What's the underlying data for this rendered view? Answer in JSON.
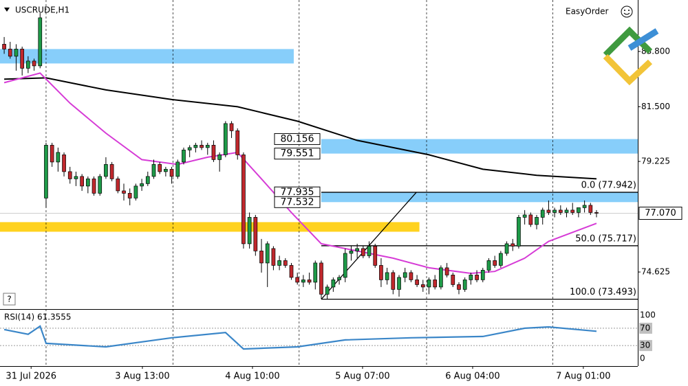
{
  "chart_data": {
    "type": "candlestick",
    "title": "USCRUDE,H1",
    "broker": "EasyOrder",
    "help": "?",
    "up_color": "#1e9a48",
    "down_color": "#c0282d",
    "candles": [
      [
        84.1,
        84.4,
        83.7,
        83.9
      ],
      [
        83.9,
        84.2,
        83.5,
        83.6
      ],
      [
        83.6,
        84.1,
        83.0,
        83.9
      ],
      [
        83.9,
        84.0,
        82.8,
        83.1
      ],
      [
        83.1,
        83.6,
        82.9,
        83.4
      ],
      [
        83.4,
        83.5,
        83.0,
        83.2
      ],
      [
        83.2,
        85.4,
        83.1,
        85.2
      ],
      [
        77.7,
        80.0,
        77.3,
        79.9
      ],
      [
        79.9,
        80.0,
        79.0,
        79.2
      ],
      [
        79.2,
        79.8,
        78.8,
        79.6
      ],
      [
        79.5,
        79.6,
        78.6,
        78.8
      ],
      [
        78.8,
        79.0,
        78.3,
        78.5
      ],
      [
        78.5,
        78.8,
        78.2,
        78.6
      ],
      [
        78.6,
        78.7,
        78.0,
        78.2
      ],
      [
        78.2,
        78.6,
        77.9,
        78.5
      ],
      [
        78.5,
        78.6,
        77.8,
        77.9
      ],
      [
        77.9,
        78.7,
        77.8,
        78.6
      ],
      [
        78.6,
        79.4,
        78.5,
        79.1
      ],
      [
        79.1,
        79.2,
        78.4,
        78.5
      ],
      [
        78.5,
        78.6,
        77.9,
        78.0
      ],
      [
        78.0,
        78.3,
        77.6,
        77.9
      ],
      [
        77.9,
        78.1,
        77.4,
        77.7
      ],
      [
        77.7,
        78.3,
        77.6,
        78.2
      ],
      [
        78.2,
        78.5,
        78.0,
        78.3
      ],
      [
        78.3,
        78.8,
        78.2,
        78.6
      ],
      [
        78.6,
        79.3,
        78.5,
        79.1
      ],
      [
        79.1,
        79.2,
        78.7,
        78.8
      ],
      [
        78.8,
        79.0,
        78.6,
        78.9
      ],
      [
        78.9,
        79.0,
        78.3,
        78.6
      ],
      [
        78.6,
        79.3,
        78.5,
        79.2
      ],
      [
        79.2,
        79.8,
        79.1,
        79.7
      ],
      [
        79.7,
        79.9,
        79.4,
        79.8
      ],
      [
        79.8,
        80.0,
        79.6,
        79.9
      ],
      [
        79.9,
        80.1,
        79.7,
        79.8
      ],
      [
        79.8,
        80.0,
        79.5,
        79.9
      ],
      [
        79.9,
        80.1,
        79.2,
        79.3
      ],
      [
        79.3,
        79.6,
        78.8,
        79.5
      ],
      [
        79.5,
        80.9,
        79.4,
        80.8
      ],
      [
        80.8,
        80.9,
        80.2,
        80.5
      ],
      [
        80.5,
        80.6,
        79.3,
        79.5
      ],
      [
        79.5,
        79.6,
        75.6,
        75.8
      ],
      [
        75.8,
        77.1,
        75.6,
        76.9
      ],
      [
        76.9,
        77.0,
        75.3,
        75.5
      ],
      [
        75.5,
        76.0,
        74.6,
        75.0
      ],
      [
        75.0,
        75.9,
        74.0,
        75.8
      ],
      [
        75.6,
        75.7,
        74.7,
        74.9
      ],
      [
        74.9,
        75.3,
        74.7,
        75.1
      ],
      [
        75.1,
        75.2,
        74.8,
        74.9
      ],
      [
        74.9,
        75.0,
        74.3,
        74.4
      ],
      [
        74.4,
        74.6,
        74.1,
        74.2
      ],
      [
        74.2,
        74.5,
        74.0,
        74.3
      ],
      [
        74.3,
        74.6,
        74.1,
        74.2
      ],
      [
        74.2,
        75.1,
        73.9,
        75.0
      ],
      [
        75.0,
        75.1,
        73.5,
        73.7
      ],
      [
        73.7,
        74.1,
        73.5,
        74.0
      ],
      [
        74.0,
        74.4,
        73.8,
        74.3
      ],
      [
        74.3,
        74.5,
        74.1,
        74.4
      ],
      [
        74.4,
        75.6,
        74.2,
        75.4
      ],
      [
        75.4,
        75.7,
        75.1,
        75.5
      ],
      [
        75.5,
        75.8,
        75.2,
        75.6
      ],
      [
        75.6,
        75.7,
        75.2,
        75.3
      ],
      [
        75.3,
        75.9,
        75.2,
        75.7
      ],
      [
        75.7,
        75.8,
        74.8,
        74.9
      ],
      [
        74.9,
        75.2,
        74.0,
        74.3
      ],
      [
        74.3,
        74.8,
        74.1,
        74.6
      ],
      [
        74.6,
        74.7,
        73.7,
        73.9
      ],
      [
        73.9,
        74.5,
        73.6,
        74.4
      ],
      [
        74.4,
        74.8,
        74.2,
        74.6
      ],
      [
        74.6,
        74.7,
        74.2,
        74.3
      ],
      [
        74.3,
        74.5,
        74.0,
        74.1
      ],
      [
        74.1,
        74.3,
        73.8,
        74.0
      ],
      [
        74.0,
        74.4,
        73.7,
        74.3
      ],
      [
        74.3,
        74.5,
        73.9,
        74.0
      ],
      [
        74.0,
        74.9,
        73.9,
        74.8
      ],
      [
        74.8,
        75.0,
        74.4,
        74.5
      ],
      [
        74.5,
        74.6,
        74.0,
        74.1
      ],
      [
        74.1,
        74.2,
        73.7,
        73.9
      ],
      [
        73.9,
        74.4,
        73.8,
        74.3
      ],
      [
        74.3,
        74.6,
        74.1,
        74.5
      ],
      [
        74.5,
        74.7,
        74.2,
        74.3
      ],
      [
        74.3,
        74.8,
        74.2,
        74.7
      ],
      [
        74.7,
        75.2,
        74.6,
        75.1
      ],
      [
        75.1,
        75.3,
        74.8,
        74.9
      ],
      [
        74.9,
        75.5,
        74.8,
        75.4
      ],
      [
        75.4,
        75.9,
        75.3,
        75.8
      ],
      [
        75.8,
        76.0,
        75.5,
        75.7
      ],
      [
        75.7,
        77.0,
        75.6,
        76.9
      ],
      [
        76.9,
        77.2,
        76.6,
        77.0
      ],
      [
        77.0,
        77.1,
        76.5,
        76.6
      ],
      [
        76.6,
        77.0,
        76.4,
        76.9
      ],
      [
        76.9,
        77.3,
        76.6,
        77.2
      ],
      [
        77.2,
        77.6,
        77.0,
        77.1
      ],
      [
        77.1,
        77.3,
        76.9,
        77.2
      ],
      [
        77.2,
        77.4,
        77.0,
        77.1
      ],
      [
        77.1,
        77.3,
        76.9,
        77.2
      ],
      [
        77.2,
        77.5,
        77.0,
        77.1
      ],
      [
        77.1,
        77.3,
        76.9,
        77.3
      ],
      [
        77.3,
        77.6,
        77.1,
        77.4
      ],
      [
        77.4,
        77.5,
        77.0,
        77.1
      ],
      [
        77.1,
        77.2,
        76.9,
        77.07
      ]
    ],
    "xlim": [
      -0.7,
      105.9
    ],
    "ylim": [
      73.083,
      85.94
    ],
    "yticks": [
      {
        "value": 83.8,
        "label": "83.800"
      },
      {
        "value": 81.5,
        "label": "81.500"
      },
      {
        "value": 79.225,
        "label": "79.225"
      },
      {
        "value": 74.625,
        "label": "74.625"
      }
    ],
    "xticks": [
      {
        "value": 4.5,
        "label": "31 Jul 2026"
      },
      {
        "value": 23.1,
        "label": "3 Aug 13:00"
      },
      {
        "value": 41.5,
        "label": "4 Aug 10:00"
      },
      {
        "value": 59.9,
        "label": "5 Aug 07:00"
      },
      {
        "value": 78.3,
        "label": "6 Aug 04:00"
      },
      {
        "value": 96.8,
        "label": "7 Aug 01:00"
      }
    ],
    "separators": [
      7,
      28.2,
      49.3,
      70.6,
      91.7
    ],
    "last_price": {
      "value": 77.07,
      "label": "77.070"
    },
    "series": [
      {
        "color": "#000000",
        "x": [
          0,
          7,
          17,
          28,
          39,
          49,
          59,
          71,
          80,
          89,
          99
        ],
        "values": [
          82.65,
          82.7,
          82.2,
          81.8,
          81.5,
          80.9,
          80.1,
          79.5,
          78.9,
          78.65,
          78.5
        ]
      },
      {
        "color": "#d63bd6",
        "x": [
          0,
          6,
          11,
          17,
          23,
          29,
          34,
          39,
          43,
          48,
          53,
          59,
          65,
          71,
          78,
          82,
          87,
          91,
          99
        ],
        "values": [
          82.5,
          82.9,
          81.65,
          80.4,
          79.3,
          79.1,
          79.4,
          79.6,
          78.5,
          77.1,
          75.8,
          75.5,
          75.2,
          74.8,
          74.57,
          74.65,
          75.2,
          75.9,
          76.65
        ]
      }
    ],
    "zones": [
      {
        "color": "#87cefa",
        "start": -0.7,
        "end": 48.4,
        "top": 83.9,
        "bottom": 83.3,
        "labeled": false
      },
      {
        "color": "#87cefa",
        "start": 53,
        "end": 105.9,
        "top": 80.156,
        "bottom": 79.551,
        "labeled": true
      },
      {
        "color": "#87cefa",
        "start": 53,
        "end": 105.9,
        "top": 77.935,
        "bottom": 77.532,
        "labeled": true
      },
      {
        "color": "#ffd21f",
        "start": -0.7,
        "end": 69.4,
        "top": 76.7,
        "bottom": 76.3,
        "labeled": false
      }
    ],
    "fibonacci": {
      "start": 53,
      "end": 105.9,
      "levels": [
        {
          "value": 77.942,
          "label": "0.0 (77.942)"
        },
        {
          "value": 75.717,
          "label": "50.0 (75.717)"
        },
        {
          "value": 73.493,
          "label": "100.0 (73.493)"
        }
      ]
    },
    "trend_line": {
      "x": [
        53,
        68.9
      ],
      "values": [
        73.493,
        77.942
      ]
    },
    "rsi": {
      "title": "RSI(14) 61.3555",
      "color": "#3a86c8",
      "ylim": [
        0,
        100
      ],
      "yticks": [
        100,
        70,
        30,
        0
      ],
      "levels": [
        70,
        30
      ],
      "x": [
        0,
        4,
        6,
        7,
        17,
        28,
        37,
        40,
        49,
        57,
        68,
        80,
        87,
        91,
        99
      ],
      "values": [
        67,
        56,
        75,
        35,
        27,
        48,
        60,
        22,
        27,
        43,
        48,
        51,
        70,
        73,
        63
      ]
    }
  }
}
